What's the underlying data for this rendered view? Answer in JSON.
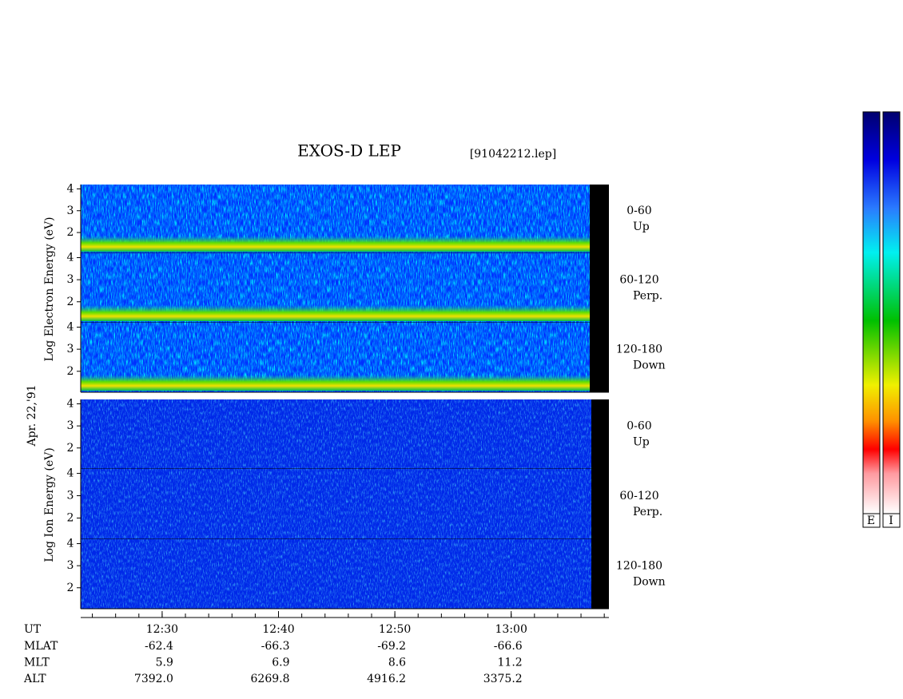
{
  "title": "EXOS-D LEP",
  "file": "[91042212.lep]",
  "date": "Apr. 22,'91",
  "electron_label": "Log Electron Energy (eV)",
  "ion_label": "Log Ion Energy (eV)",
  "electron_panels": [
    {
      "pitch": "0-60",
      "dir": "Up"
    },
    {
      "pitch": "60-120",
      "dir": "Perp."
    },
    {
      "pitch": "120-180",
      "dir": "Down"
    }
  ],
  "ion_panels": [
    {
      "pitch": "0-60",
      "dir": "Up"
    },
    {
      "pitch": "60-120",
      "dir": "Perp."
    },
    {
      "pitch": "120-180",
      "dir": "Down"
    }
  ],
  "ylim": [
    1.05,
    4.2
  ],
  "yticks": [
    2,
    3,
    4
  ],
  "xlim": [
    743,
    788.4
  ],
  "xticks": [
    {
      "value": 750,
      "label": "12:30"
    },
    {
      "value": 760,
      "label": "12:40"
    },
    {
      "value": 770,
      "label": "12:50"
    },
    {
      "value": 780,
      "label": "13:00"
    }
  ],
  "minor_xticks": [
    744,
    746,
    748,
    750,
    752,
    754,
    756,
    758,
    760,
    762,
    764,
    766,
    768,
    770,
    772,
    774,
    776,
    778,
    780,
    782,
    784,
    786,
    788
  ],
  "ephemeris": {
    "ut_label": "UT",
    "rows": [
      {
        "label": "MLAT",
        "values": [
          "-62.4",
          "-66.3",
          "-69.2",
          "-66.6"
        ]
      },
      {
        "label": "MLT",
        "values": [
          "5.9",
          "6.9",
          "8.6",
          "11.2"
        ]
      },
      {
        "label": "ALT",
        "values": [
          "7392.0",
          "6269.8",
          "4916.2",
          "3375.2"
        ]
      }
    ]
  },
  "colorbar_labels": [
    "E",
    "I"
  ]
}
